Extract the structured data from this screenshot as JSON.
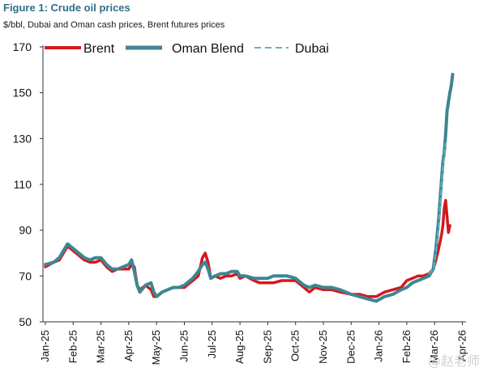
{
  "chart_data": {
    "type": "line",
    "title": "Figure 1: Crude oil prices",
    "subtitle": "$/bbl, Dubai and Oman cash prices, Brent futures prices",
    "xlabel": "",
    "ylabel": "",
    "ylim": [
      50,
      170
    ],
    "yticks": [
      50,
      70,
      90,
      110,
      130,
      150,
      170
    ],
    "xticks": [
      "Jan-25",
      "Feb-25",
      "Mar-25",
      "Apr-25",
      "May-25",
      "Jun-25",
      "Jul-25",
      "Aug-25",
      "Sep-25",
      "Oct-25",
      "Nov-25",
      "Dec-25",
      "Jan-26",
      "Feb-26",
      "Mar-26",
      "Apr-26"
    ],
    "grid": false,
    "legend_position": "top",
    "series": [
      {
        "name": "Brent",
        "color": "#d4181f",
        "style": "solid",
        "points": [
          [
            0,
            74
          ],
          [
            0.3,
            76
          ],
          [
            0.5,
            77
          ],
          [
            0.7,
            81
          ],
          [
            0.8,
            83
          ],
          [
            1.0,
            81
          ],
          [
            1.2,
            79
          ],
          [
            1.4,
            77
          ],
          [
            1.6,
            76
          ],
          [
            1.8,
            76
          ],
          [
            2.0,
            77
          ],
          [
            2.2,
            74
          ],
          [
            2.4,
            72
          ],
          [
            2.6,
            73
          ],
          [
            2.8,
            73
          ],
          [
            3.0,
            73
          ],
          [
            3.1,
            75
          ],
          [
            3.2,
            74
          ],
          [
            3.3,
            66
          ],
          [
            3.4,
            64
          ],
          [
            3.6,
            66
          ],
          [
            3.8,
            64
          ],
          [
            3.9,
            61
          ],
          [
            4.0,
            61
          ],
          [
            4.2,
            63
          ],
          [
            4.4,
            64
          ],
          [
            4.6,
            65
          ],
          [
            4.8,
            65
          ],
          [
            5.0,
            65
          ],
          [
            5.3,
            68
          ],
          [
            5.5,
            70
          ],
          [
            5.65,
            78
          ],
          [
            5.75,
            80
          ],
          [
            5.85,
            76
          ],
          [
            5.95,
            69
          ],
          [
            6.1,
            70
          ],
          [
            6.3,
            69
          ],
          [
            6.5,
            70
          ],
          [
            6.7,
            70
          ],
          [
            6.9,
            71
          ],
          [
            7.0,
            69
          ],
          [
            7.2,
            70
          ],
          [
            7.5,
            68
          ],
          [
            7.7,
            67
          ],
          [
            8.0,
            67
          ],
          [
            8.2,
            67
          ],
          [
            8.5,
            68
          ],
          [
            8.7,
            68
          ],
          [
            9.0,
            68
          ],
          [
            9.1,
            67
          ],
          [
            9.3,
            65
          ],
          [
            9.5,
            63
          ],
          [
            9.7,
            65
          ],
          [
            10.0,
            64
          ],
          [
            10.3,
            64
          ],
          [
            10.6,
            63
          ],
          [
            11.0,
            62
          ],
          [
            11.3,
            62
          ],
          [
            11.6,
            61
          ],
          [
            11.9,
            61
          ],
          [
            12.2,
            63
          ],
          [
            12.5,
            64
          ],
          [
            12.8,
            65
          ],
          [
            13.0,
            68
          ],
          [
            13.2,
            69
          ],
          [
            13.4,
            70
          ],
          [
            13.6,
            70
          ],
          [
            13.8,
            71
          ],
          [
            13.95,
            73
          ],
          [
            14.05,
            77
          ],
          [
            14.15,
            82
          ],
          [
            14.25,
            88
          ],
          [
            14.3,
            92
          ],
          [
            14.35,
            100
          ],
          [
            14.4,
            103
          ],
          [
            14.45,
            96
          ],
          [
            14.5,
            89
          ],
          [
            14.55,
            92
          ]
        ]
      },
      {
        "name": "Oman Blend",
        "color": "#3f8592",
        "style": "solid",
        "points": [
          [
            0,
            75
          ],
          [
            0.3,
            76
          ],
          [
            0.5,
            78
          ],
          [
            0.7,
            82
          ],
          [
            0.8,
            84
          ],
          [
            1.0,
            82
          ],
          [
            1.2,
            80
          ],
          [
            1.4,
            78
          ],
          [
            1.6,
            77
          ],
          [
            1.8,
            78
          ],
          [
            2.0,
            78
          ],
          [
            2.2,
            75
          ],
          [
            2.4,
            73
          ],
          [
            2.6,
            73
          ],
          [
            2.8,
            74
          ],
          [
            3.0,
            75
          ],
          [
            3.1,
            77
          ],
          [
            3.2,
            72
          ],
          [
            3.3,
            66
          ],
          [
            3.4,
            63
          ],
          [
            3.6,
            66
          ],
          [
            3.8,
            67
          ],
          [
            3.9,
            63
          ],
          [
            4.0,
            61
          ],
          [
            4.2,
            63
          ],
          [
            4.4,
            64
          ],
          [
            4.6,
            65
          ],
          [
            4.8,
            65
          ],
          [
            5.0,
            66
          ],
          [
            5.3,
            69
          ],
          [
            5.5,
            72
          ],
          [
            5.65,
            75
          ],
          [
            5.75,
            76
          ],
          [
            5.85,
            73
          ],
          [
            5.95,
            69
          ],
          [
            6.1,
            70
          ],
          [
            6.3,
            71
          ],
          [
            6.5,
            71
          ],
          [
            6.7,
            72
          ],
          [
            6.9,
            72
          ],
          [
            7.0,
            70
          ],
          [
            7.2,
            70
          ],
          [
            7.5,
            69
          ],
          [
            7.7,
            69
          ],
          [
            8.0,
            69
          ],
          [
            8.2,
            70
          ],
          [
            8.5,
            70
          ],
          [
            8.7,
            70
          ],
          [
            9.0,
            69
          ],
          [
            9.1,
            68
          ],
          [
            9.3,
            66
          ],
          [
            9.5,
            65
          ],
          [
            9.7,
            66
          ],
          [
            10.0,
            65
          ],
          [
            10.3,
            65
          ],
          [
            10.6,
            64
          ],
          [
            11.0,
            62
          ],
          [
            11.3,
            61
          ],
          [
            11.6,
            60
          ],
          [
            11.9,
            59
          ],
          [
            12.2,
            61
          ],
          [
            12.5,
            62
          ],
          [
            12.8,
            64
          ],
          [
            13.0,
            65
          ],
          [
            13.2,
            67
          ],
          [
            13.4,
            68
          ],
          [
            13.6,
            69
          ],
          [
            13.8,
            70
          ],
          [
            13.95,
            73
          ],
          [
            14.05,
            82
          ],
          [
            14.15,
            95
          ],
          [
            14.25,
            112
          ],
          [
            14.3,
            120
          ],
          [
            14.35,
            124
          ],
          [
            14.4,
            132
          ],
          [
            14.45,
            142
          ],
          [
            14.5,
            146
          ],
          [
            14.55,
            150
          ],
          [
            14.6,
            153
          ],
          [
            14.65,
            158
          ]
        ]
      },
      {
        "name": "Dubai",
        "color": "#5fb3be",
        "style": "dashed",
        "points": [
          [
            13.8,
            71
          ],
          [
            13.95,
            73
          ],
          [
            14.05,
            80
          ],
          [
            14.15,
            92
          ],
          [
            14.25,
            110
          ],
          [
            14.3,
            118
          ],
          [
            14.35,
            122
          ],
          [
            14.4,
            128
          ]
        ]
      }
    ]
  },
  "watermark": "@赵老师"
}
